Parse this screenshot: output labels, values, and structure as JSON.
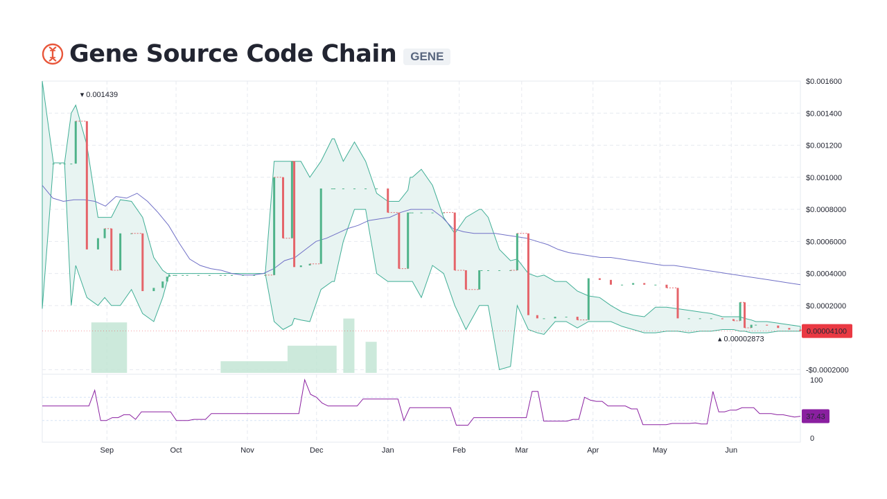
{
  "header": {
    "coin_name": "Gene Source Code Chain",
    "symbol": "GENE",
    "logo_icon": "dna-helix-icon",
    "logo_color": "#e8563a"
  },
  "chart_data": [
    {
      "type": "candlestick",
      "title": "",
      "currency": "$",
      "y_ticks": [
        "$0.001600",
        "$0.001400",
        "$0.001200",
        "$0.001000",
        "$0.0008000",
        "$0.0006000",
        "$0.0004000",
        "$0.0002000",
        "-$0.0002000"
      ],
      "y_tick_values": [
        0.0016,
        0.0014,
        0.0012,
        0.001,
        0.0008,
        0.0006,
        0.0004,
        0.0002,
        -0.0002
      ],
      "ylim": [
        -0.00022,
        0.0016
      ],
      "x_ticks": [
        "Sep",
        "Oct",
        "Nov",
        "Dec",
        "Jan",
        "Feb",
        "Mar",
        "Apr",
        "May",
        "Jun"
      ],
      "current_price_label": "0.00004100",
      "current_price": 4.1e-05,
      "high_marker": {
        "label": "0.001439",
        "value": 0.001439
      },
      "low_marker": {
        "label": "0.00002873",
        "value": 2.873e-05
      },
      "colors": {
        "up": "#4fb38a",
        "down": "#e5646a",
        "band_fill": "#e8f4f2",
        "band_line": "#3fae95",
        "ma_long": "#6f6fc6",
        "ma_short": "#a37fd6",
        "current_price_bg": "#ea3943",
        "grid": "#e6e9ef"
      },
      "series": [
        {
          "name": "price_close",
          "x": [
            0,
            5,
            8,
            10,
            13,
            15,
            20,
            25,
            28,
            31,
            35,
            40,
            45,
            50,
            54,
            56,
            57,
            59,
            60,
            63,
            65,
            70,
            75,
            80,
            82,
            85,
            90,
            95,
            100,
            104,
            108,
            112,
            113,
            116,
            120,
            125,
            130,
            131,
            135,
            140,
            145,
            150,
            155,
            160,
            164,
            165,
            166,
            170,
            175,
            180,
            185,
            190,
            196,
            197,
            200,
            205,
            210,
            213,
            218,
            222,
            225,
            230,
            235,
            240,
            245,
            250,
            255,
            260,
            265,
            270,
            275,
            280,
            285,
            290,
            295,
            300,
            305,
            310,
            313,
            315,
            318,
            320,
            325,
            330,
            335,
            340
          ],
          "values": [
            0.001085,
            0.001085,
            0.001085,
            0.001085,
            0.001085,
            0.00135,
            0.00055,
            0.00062,
            0.00068,
            0.00042,
            0.00065,
            0.00065,
            0.00029,
            0.00031,
            0.00035,
            0.00038,
            0.00039,
            0.00039,
            0.00039,
            0.00039,
            0.00039,
            0.00039,
            0.00039,
            0.00039,
            0.00039,
            0.00039,
            0.00039,
            0.00039,
            0.00039,
            0.001,
            0.00062,
            0.0011,
            0.00044,
            0.00045,
            0.00046,
            0.00093,
            0.00093,
            0.00093,
            0.00093,
            0.00093,
            0.00093,
            0.00093,
            0.00078,
            0.00043,
            0.00078,
            0.00078,
            0.00078,
            0.00078,
            0.00078,
            0.00078,
            0.00042,
            0.0003,
            0.00042,
            0.00042,
            0.00042,
            0.00042,
            0.00042,
            0.00065,
            0.00014,
            0.00012,
            0.00012,
            0.00013,
            0.00013,
            0.00011,
            0.00037,
            0.00036,
            0.00033,
            0.00033,
            0.00034,
            0.00033,
            0.00033,
            0.00031,
            0.00012,
            0.00012,
            0.00012,
            0.00012,
            0.000115,
            0.000105,
            0.00022,
            6.1e-05,
            8e-05,
            8e-05,
            7.5e-05,
            6e-05,
            5e-05,
            4.1e-05
          ]
        },
        {
          "name": "bollinger_upper",
          "values": [
            0.0016,
            0.00109,
            0.00109,
            0.00109,
            0.0014,
            0.00145,
            0.0012,
            0.00075,
            0.00075,
            0.00075,
            0.00086,
            0.00085,
            0.00075,
            0.0005,
            0.00042,
            0.0004,
            0.0004,
            0.0004,
            0.0004,
            0.0004,
            0.0004,
            0.0004,
            0.0004,
            0.0004,
            0.0004,
            0.0004,
            0.0004,
            0.0004,
            0.0004,
            0.0011,
            0.0011,
            0.0011,
            0.0011,
            0.0011,
            0.001,
            0.0011,
            0.00124,
            0.00124,
            0.0011,
            0.00122,
            0.0011,
            0.0009,
            0.00085,
            0.00085,
            0.00092,
            0.001,
            0.001,
            0.00105,
            0.00095,
            0.00075,
            0.00065,
            0.00075,
            0.0008,
            0.0008,
            0.00075,
            0.00055,
            0.00048,
            0.00049,
            0.0004,
            0.00038,
            0.00039,
            0.00035,
            0.00035,
            0.00029,
            0.00026,
            0.00025,
            0.0002,
            0.00016,
            0.00014,
            0.00013,
            0.00019,
            0.00019,
            0.00018,
            0.00017,
            0.00016,
            0.00015,
            0.00013,
            0.00013,
            0.00013,
            0.00012,
            0.00011,
            0.0001,
            0.0001,
            9e-05,
            8e-05,
            7e-05
          ]
        },
        {
          "name": "bollinger_lower",
          "values": [
            0.00018,
            0.00109,
            0.00109,
            0.00109,
            0.0002,
            0.00045,
            0.00025,
            0.0002,
            0.00025,
            0.0002,
            0.0002,
            0.0003,
            0.00015,
            0.0001,
            0.00025,
            0.00035,
            0.0004,
            0.0004,
            0.0004,
            0.0004,
            0.0004,
            0.0004,
            0.0004,
            0.0004,
            0.0004,
            0.0004,
            0.0004,
            0.0004,
            0.0004,
            0.0001,
            5e-05,
            8e-05,
            0.00012,
            0.00011,
            0.0001,
            0.0003,
            0.00035,
            0.00035,
            0.0006,
            0.0008,
            0.0008,
            0.0004,
            0.00035,
            0.00035,
            0.00035,
            0.00035,
            0.00035,
            0.00025,
            0.00045,
            0.0004,
            0.0002,
            5e-05,
            0.0002,
            0.0002,
            0.0002,
            -0.0002,
            -0.00018,
            0.0002,
            5e-05,
            3e-05,
            2e-05,
            0.0001,
            0.0001,
            6e-05,
            0.0001,
            0.0001,
            0.0001,
            7e-05,
            5e-05,
            3e-05,
            3e-05,
            4e-05,
            4e-05,
            3e-05,
            4e-05,
            4e-05,
            5e-05,
            5e-05,
            4e-05,
            4e-05,
            3e-05,
            3e-05,
            3e-05,
            4e-05,
            4e-05,
            4e-05
          ]
        },
        {
          "name": "moving_average_long",
          "values": [
            0.00095,
            0.00087,
            0.00085,
            0.00086,
            0.00086,
            0.00085,
            0.00082,
            0.00088,
            0.00087,
            0.0009,
            0.00085,
            0.00078,
            0.0007,
            0.00059,
            0.00049,
            0.00045,
            0.00043,
            0.00042,
            0.0004,
            0.00039,
            0.00039,
            0.0004,
            0.00043,
            0.00048,
            0.0005,
            0.00055,
            0.0006,
            0.00062,
            0.00065,
            0.00068,
            0.0007,
            0.00073,
            0.00074,
            0.00075,
            0.00078,
            0.0008,
            0.0008,
            0.0008,
            0.00075,
            0.00068,
            0.00066,
            0.00065,
            0.00065,
            0.00065,
            0.00064,
            0.00063,
            0.00062,
            0.0006,
            0.00058,
            0.00055,
            0.00053,
            0.00052,
            0.00051,
            0.0005,
            0.0005,
            0.00049,
            0.00048,
            0.00047,
            0.00046,
            0.00045,
            0.00045,
            0.00044,
            0.00043,
            0.00042,
            0.00041,
            0.0004,
            0.00039,
            0.00038,
            0.00037,
            0.00036,
            0.00035,
            0.00034,
            0.00033
          ]
        },
        {
          "name": "rsi",
          "min": 0,
          "max": 100,
          "ticks": [
            "100",
            "0"
          ],
          "current_label": "37.43",
          "current": 37.43,
          "color": "#8a1fa0",
          "label_bg": "#8a1fa0",
          "overbought": 70,
          "oversold": 30,
          "values": [
            55,
            55,
            55,
            55,
            55,
            55,
            55,
            55,
            55,
            82,
            30,
            30,
            35,
            35,
            40,
            40,
            32,
            45,
            45,
            45,
            45,
            45,
            45,
            30,
            30,
            30,
            32,
            32,
            32,
            42,
            42,
            42,
            42,
            42,
            42,
            42,
            42,
            42,
            42,
            42,
            42,
            42,
            42,
            42,
            42,
            100,
            75,
            70,
            60,
            55,
            55,
            55,
            55,
            55,
            55,
            67,
            67,
            67,
            67,
            67,
            67,
            67,
            30,
            52,
            52,
            52,
            52,
            52,
            52,
            52,
            52,
            22,
            22,
            22,
            35,
            35,
            35,
            35,
            35,
            35,
            35,
            35,
            35,
            35,
            80,
            80,
            29,
            29,
            29,
            29,
            29,
            32,
            32,
            70,
            65,
            63,
            63,
            55,
            55,
            55,
            55,
            50,
            50,
            23,
            23,
            23,
            23,
            23,
            25,
            25,
            25,
            25,
            26,
            24,
            24,
            80,
            45,
            45,
            48,
            48,
            52,
            52,
            52,
            42,
            42,
            42,
            40,
            40,
            38,
            36,
            37.43
          ]
        }
      ],
      "volume": {
        "x_ranges": [
          [
            22,
            38
          ],
          [
            80,
            110
          ],
          [
            110,
            132
          ],
          [
            135,
            140
          ],
          [
            145,
            150
          ],
          [
            150,
            175
          ]
        ],
        "values": [
          0.13,
          0.03,
          0.07,
          0.14,
          0.08,
          0.0
        ]
      }
    }
  ]
}
